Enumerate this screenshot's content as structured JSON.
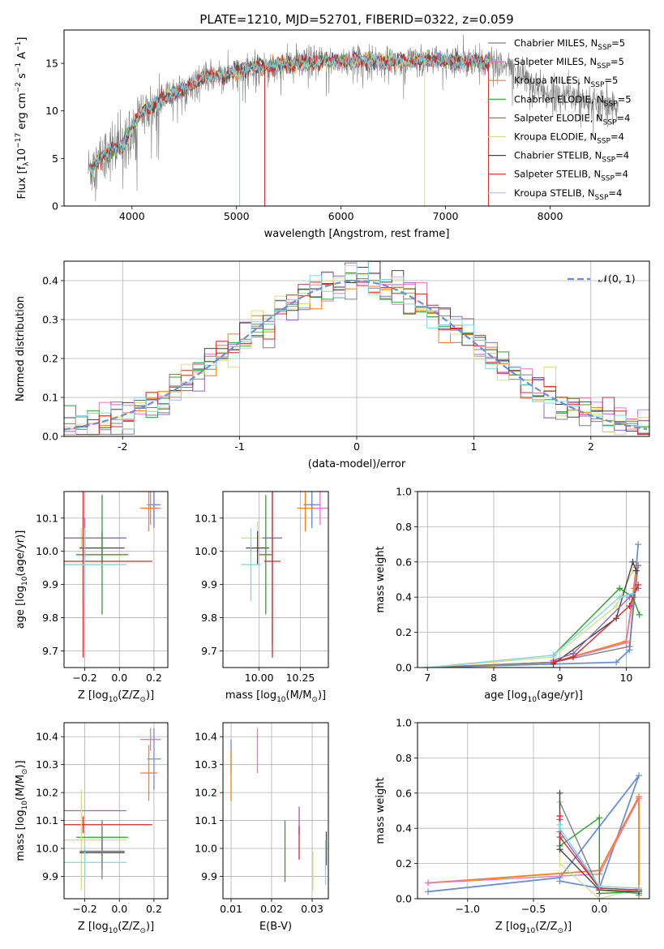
{
  "suptitle": "PLATE=1210, MJD=52701, FIBERID=0322, z=0.059",
  "colors": {
    "chabrier_miles": "#808080",
    "salpeter_miles": "#e377c2",
    "kroupa_miles": "#ff7f0e",
    "chabrier_elodie": "#2ca02c",
    "salpeter_elodie": "#9467bd",
    "kroupa_elodie": "#dbdb8d",
    "chabrier_stelib": "#444444",
    "salpeter_stelib": "#d62728",
    "kroupa_stelib": "#7fd6e0",
    "normal": "#6a8fd8"
  },
  "chart_data": [
    {
      "id": "spectrum",
      "type": "line",
      "xlabel_parts": [
        "wavelength [Angstrom, rest frame]"
      ],
      "ylabel_parts": [
        "Flux [f",
        "λ",
        "10",
        "−17",
        " erg cm",
        "−2",
        " s",
        "−1",
        " A",
        "−1",
        "]"
      ],
      "xlim": [
        3350,
        8950
      ],
      "ylim": [
        0,
        18.5
      ],
      "xticks": [
        4000,
        5000,
        6000,
        7000,
        8000
      ],
      "yticks": [
        0,
        5,
        10,
        15
      ],
      "legend_placement": "upper right",
      "legend": [
        {
          "label": "Chabrier MILES, N",
          "sub": "SSP",
          "tail": "=5",
          "color_key": "chabrier_miles"
        },
        {
          "label": "Salpeter MILES, N",
          "sub": "SSP",
          "tail": "=5",
          "color_key": "salpeter_miles"
        },
        {
          "label": "Kroupa MILES, N",
          "sub": "SSP",
          "tail": "=5",
          "color_key": "kroupa_miles"
        },
        {
          "label": "Chabrier ELODIE, N",
          "sub": "SSP",
          "tail": "=5",
          "color_key": "chabrier_elodie"
        },
        {
          "label": "Salpeter ELODIE, N",
          "sub": "SSP",
          "tail": "=4",
          "color_key": "salpeter_elodie"
        },
        {
          "label": "Kroupa ELODIE, N",
          "sub": "SSP",
          "tail": "=4",
          "color_key": "kroupa_elodie"
        },
        {
          "label": "Chabrier STELIB, N",
          "sub": "SSP",
          "tail": "=4",
          "color_key": "chabrier_stelib"
        },
        {
          "label": "Salpeter STELIB, N",
          "sub": "SSP",
          "tail": "=4",
          "color_key": "salpeter_stelib"
        },
        {
          "label": "Kroupa STELIB, N",
          "sub": "SSP",
          "tail": "=4",
          "color_key": "kroupa_stelib"
        }
      ],
      "continuum": {
        "x": [
          3600,
          3700,
          3800,
          3900,
          4000,
          4100,
          4200,
          4300,
          4400,
          4500,
          4600,
          4700,
          4800,
          4900,
          5000,
          5200,
          5400,
          5600,
          5800,
          6000,
          6200,
          6400,
          6600,
          6800,
          7000,
          7200,
          7400,
          7600,
          7800,
          8000,
          8200,
          8400,
          8600
        ],
        "y": [
          3.8,
          5.0,
          6.0,
          6.2,
          8.3,
          10.0,
          10.5,
          11.2,
          12.0,
          12.3,
          13.0,
          13.6,
          13.8,
          13.7,
          14.2,
          14.6,
          14.8,
          15.0,
          15.2,
          15.3,
          15.3,
          15.2,
          15.2,
          15.3,
          15.3,
          15.2,
          15.1,
          14.6,
          13.2,
          11.8,
          11.6,
          11.2,
          10.6
        ]
      },
      "data_range": [
        3580,
        8650
      ],
      "model_range": [
        3600,
        7420
      ],
      "spike_x": [
        5030,
        5270,
        6800,
        7410
      ]
    },
    {
      "id": "residuals",
      "type": "step-histogram",
      "xlabel_parts": [
        "(data-model)/error"
      ],
      "ylabel_parts": [
        "Normed distribution"
      ],
      "xlim": [
        -2.5,
        2.5
      ],
      "ylim": [
        0,
        0.45
      ],
      "xticks": [
        -2,
        -1,
        0,
        1,
        2
      ],
      "yticks": [
        0.0,
        0.1,
        0.2,
        0.3,
        0.4
      ],
      "legend_placement": "upper right",
      "legend": [
        {
          "label": "𝒩(0, 1)",
          "color_key": "normal"
        }
      ],
      "bin_width": 0.1,
      "histogram_range": [
        -2.5,
        2.5
      ]
    },
    {
      "id": "age-vs-Z",
      "type": "errorbar",
      "xlabel_parts": [
        "Z [log",
        "10",
        "(Z/Z",
        "⊙",
        ")]"
      ],
      "ylabel_parts": [
        "age  [log",
        "10",
        "(age/yr)]"
      ],
      "xlim": [
        -0.32,
        0.28
      ],
      "ylim": [
        9.65,
        10.18
      ],
      "xticks": [
        -0.2,
        0.0,
        0.2
      ],
      "xticklabels": [
        "−0.2",
        "0.0",
        "0.2"
      ],
      "yticks": [
        9.7,
        9.8,
        9.9,
        10.0,
        10.1
      ],
      "points": [
        {
          "color_key": "chabrier_miles",
          "x": 0.2,
          "xerr": 0.03,
          "y": 10.14,
          "yerr": 0.06
        },
        {
          "color_key": "normal",
          "x": 0.2,
          "xerr": 0.04,
          "y": 10.14,
          "yerr": 0.07
        },
        {
          "color_key": "salpeter_miles",
          "x": 0.18,
          "xerr": 0.06,
          "y": 10.13,
          "yerr": 0.05
        },
        {
          "color_key": "kroupa_miles",
          "x": 0.17,
          "xerr": 0.05,
          "y": 10.13,
          "yerr": 0.07
        },
        {
          "color_key": "kroupa_elodie",
          "x": -0.22,
          "xerr": 0.26,
          "y": 10.04,
          "yerr": 0.03
        },
        {
          "color_key": "salpeter_elodie",
          "x": -0.2,
          "xerr": 0.24,
          "y": 10.04,
          "yerr": 0.06
        },
        {
          "color_key": "chabrier_stelib",
          "x": -0.1,
          "xerr": 0.13,
          "y": 10.01,
          "yerr": 0.05
        },
        {
          "color_key": "chabrier_elodie",
          "x": -0.1,
          "xerr": 0.15,
          "y": 9.99,
          "yerr": 0.18
        },
        {
          "color_key": "salpeter_stelib",
          "x": -0.21,
          "xerr": 0.4,
          "y": 9.97,
          "yerr": 0.29
        },
        {
          "color_key": "kroupa_stelib",
          "x": -0.2,
          "xerr": 0.24,
          "y": 9.96,
          "yerr": 0.11
        }
      ]
    },
    {
      "id": "age-vs-mass",
      "type": "errorbar",
      "xlabel_parts": [
        "mass [log",
        "10",
        "(M/M",
        "⊙",
        ")]"
      ],
      "ylabel_parts": [],
      "xlim": [
        9.78,
        10.42
      ],
      "ylim": [
        9.65,
        10.18
      ],
      "xticks": [
        10.0,
        10.25
      ],
      "xticklabels": [
        "10.00",
        "10.25"
      ],
      "yticks": [
        9.7,
        9.8,
        9.9,
        10.0,
        10.1
      ],
      "points": [
        {
          "color_key": "chabrier_miles",
          "x": 10.32,
          "xerr": 0.05,
          "y": 10.14,
          "yerr": 0.06
        },
        {
          "color_key": "normal",
          "x": 10.32,
          "xerr": 0.05,
          "y": 10.14,
          "yerr": 0.07
        },
        {
          "color_key": "salpeter_miles",
          "x": 10.37,
          "xerr": 0.05,
          "y": 10.13,
          "yerr": 0.05
        },
        {
          "color_key": "kroupa_miles",
          "x": 10.28,
          "xerr": 0.05,
          "y": 10.13,
          "yerr": 0.07
        },
        {
          "color_key": "kroupa_elodie",
          "x": 9.99,
          "xerr": 0.1,
          "y": 10.04,
          "yerr": 0.05
        },
        {
          "color_key": "salpeter_elodie",
          "x": 10.08,
          "xerr": 0.06,
          "y": 10.04,
          "yerr": 0.32
        },
        {
          "color_key": "chabrier_stelib",
          "x": 9.99,
          "xerr": 0.07,
          "y": 10.01,
          "yerr": 0.05
        },
        {
          "color_key": "chabrier_elodie",
          "x": 10.04,
          "xerr": 0.04,
          "y": 9.99,
          "yerr": 0.18
        },
        {
          "color_key": "salpeter_stelib",
          "x": 10.08,
          "xerr": 0.05,
          "y": 9.97,
          "yerr": 0.29
        },
        {
          "color_key": "kroupa_stelib",
          "x": 9.95,
          "xerr": 0.06,
          "y": 9.96,
          "yerr": 0.11
        }
      ]
    },
    {
      "id": "weight-vs-age",
      "type": "line",
      "xlabel_parts": [
        "age  [log",
        "10",
        "(age/yr)]"
      ],
      "ylabel_parts": [
        "mass weight"
      ],
      "xlim": [
        6.85,
        10.35
      ],
      "ylim": [
        0,
        1
      ],
      "xticks": [
        7,
        8,
        9,
        10
      ],
      "yticks": [
        0.0,
        0.2,
        0.4,
        0.6,
        0.8,
        1.0
      ],
      "series": [
        {
          "color_key": "normal",
          "x": [
            7.0,
            9.85,
            10.05,
            10.18
          ],
          "y": [
            0.0,
            0.03,
            0.1,
            0.7
          ]
        },
        {
          "color_key": "kroupa_miles",
          "x": [
            7.0,
            8.9,
            10.0,
            10.12,
            10.18
          ],
          "y": [
            0.0,
            0.03,
            0.15,
            0.45,
            0.58
          ]
        },
        {
          "color_key": "salpeter_miles",
          "x": [
            7.0,
            8.9,
            10.0,
            10.15
          ],
          "y": [
            0.0,
            0.03,
            0.14,
            0.57
          ]
        },
        {
          "color_key": "chabrier_miles",
          "x": [
            7.0,
            8.9,
            10.05,
            10.18
          ],
          "y": [
            0.0,
            0.03,
            0.12,
            0.58
          ]
        },
        {
          "color_key": "kroupa_elodie",
          "x": [
            7.0,
            8.9,
            9.85,
            10.1
          ],
          "y": [
            0.0,
            0.06,
            0.35,
            0.55
          ]
        },
        {
          "color_key": "chabrier_elodie",
          "x": [
            8.9,
            9.9,
            10.1,
            10.2
          ],
          "y": [
            0.07,
            0.45,
            0.4,
            0.3
          ]
        },
        {
          "color_key": "chabrier_stelib",
          "x": [
            8.9,
            9.85,
            10.1,
            10.15
          ],
          "y": [
            0.02,
            0.28,
            0.6,
            0.55
          ]
        },
        {
          "color_key": "salpeter_elodie",
          "x": [
            8.9,
            9.2,
            10.05,
            10.18
          ],
          "y": [
            0.04,
            0.08,
            0.4,
            0.45
          ]
        },
        {
          "color_key": "salpeter_stelib",
          "x": [
            8.9,
            9.2,
            10.05,
            10.18
          ],
          "y": [
            0.03,
            0.06,
            0.35,
            0.47
          ]
        },
        {
          "color_key": "kroupa_stelib",
          "x": [
            7.0,
            8.9,
            9.9,
            10.1
          ],
          "y": [
            0.0,
            0.07,
            0.4,
            0.42
          ]
        }
      ]
    },
    {
      "id": "mass-vs-Z",
      "type": "errorbar",
      "xlabel_parts": [
        "Z [log",
        "10",
        "(Z/Z",
        "⊙",
        ")]"
      ],
      "ylabel_parts": [
        "mass [log",
        "10",
        "(M/M",
        "⊙",
        ")]"
      ],
      "xlim": [
        -0.32,
        0.28
      ],
      "ylim": [
        9.82,
        10.45
      ],
      "xticks": [
        -0.2,
        0.0,
        0.2
      ],
      "xticklabels": [
        "−0.2",
        "0.0",
        "0.2"
      ],
      "yticks": [
        9.9,
        10.0,
        10.1,
        10.2,
        10.3,
        10.4
      ],
      "points": [
        {
          "color_key": "salpeter_miles",
          "x": 0.18,
          "xerr": 0.06,
          "y": 10.39,
          "yerr": 0.04
        },
        {
          "color_key": "normal",
          "x": 0.2,
          "xerr": 0.04,
          "y": 10.32,
          "yerr": 0.11
        },
        {
          "color_key": "kroupa_miles",
          "x": 0.17,
          "xerr": 0.05,
          "y": 10.27,
          "yerr": 0.1
        },
        {
          "color_key": "salpeter_elodie",
          "x": -0.2,
          "xerr": 0.24,
          "y": 10.135,
          "yerr": 0.0
        },
        {
          "color_key": "salpeter_stelib",
          "x": -0.21,
          "xerr": 0.4,
          "y": 10.085,
          "yerr": 0.03
        },
        {
          "color_key": "chabrier_elodie",
          "x": -0.1,
          "xerr": 0.15,
          "y": 10.04,
          "yerr": 0.06
        },
        {
          "color_key": "kroupa_elodie",
          "x": -0.22,
          "xerr": 0.26,
          "y": 10.03,
          "yerr": 0.18
        },
        {
          "color_key": "chabrier_stelib",
          "x": -0.1,
          "xerr": 0.13,
          "y": 9.985,
          "yerr": 0.06
        },
        {
          "color_key": "kroupa_stelib",
          "x": -0.2,
          "xerr": 0.24,
          "y": 9.95,
          "yerr": 0.06
        },
        {
          "color_key": "chabrier_miles",
          "x": -0.1,
          "xerr": 0.13,
          "y": 9.99,
          "yerr": 0.1
        }
      ]
    },
    {
      "id": "mass-vs-EBV",
      "type": "errorbar",
      "xlabel_parts": [
        "E(B-V)"
      ],
      "ylabel_parts": [],
      "xlim": [
        0.008,
        0.034
      ],
      "ylim": [
        9.82,
        10.45
      ],
      "xticks": [
        0.01,
        0.02,
        0.03
      ],
      "xticklabels": [
        "0.01",
        "0.02",
        "0.03"
      ],
      "yticks": [
        9.9,
        10.0,
        10.1,
        10.2,
        10.3,
        10.4
      ],
      "points": [
        {
          "color_key": "normal",
          "x": 0.01,
          "xerr": 0.0,
          "y": 10.33,
          "yerr": 0.06
        },
        {
          "color_key": "kroupa_miles",
          "x": 0.01,
          "xerr": 0.0,
          "y": 10.26,
          "yerr": 0.09
        },
        {
          "color_key": "salpeter_miles",
          "x": 0.0165,
          "xerr": 0.0,
          "y": 10.35,
          "yerr": 0.08
        },
        {
          "color_key": "chabrier_elodie",
          "x": 0.0233,
          "xerr": 0.0,
          "y": 9.99,
          "yerr": 0.11
        },
        {
          "color_key": "salpeter_elodie",
          "x": 0.0268,
          "xerr": 0.0,
          "y": 10.1,
          "yerr": 0.05
        },
        {
          "color_key": "salpeter_stelib",
          "x": 0.0268,
          "xerr": 0.0,
          "y": 10.02,
          "yerr": 0.06
        },
        {
          "color_key": "kroupa_elodie",
          "x": 0.0302,
          "xerr": 0.0,
          "y": 9.92,
          "yerr": 0.07
        },
        {
          "color_key": "chabrier_stelib",
          "x": 0.0335,
          "xerr": 0.0,
          "y": 10.0,
          "yerr": 0.06
        },
        {
          "color_key": "kroupa_stelib",
          "x": 0.0333,
          "xerr": 0.0,
          "y": 9.95,
          "yerr": 0.08
        }
      ]
    },
    {
      "id": "weight-vs-Z",
      "type": "line",
      "xlabel_parts": [
        "Z [log",
        "10",
        "(Z/Z",
        "⊙",
        ")]"
      ],
      "ylabel_parts": [
        "mass weight"
      ],
      "xlim": [
        -1.38,
        0.38
      ],
      "ylim": [
        0,
        1
      ],
      "xticks": [
        -1.0,
        -0.5,
        0.0
      ],
      "xticklabels": [
        "−1.0",
        "−0.5",
        "0.0"
      ],
      "yticks": [
        0.0,
        0.2,
        0.4,
        0.6,
        0.8,
        1.0
      ],
      "series": [
        {
          "color_key": "normal",
          "x": [
            -1.3,
            -0.3,
            0.3,
            0.0,
            -0.3
          ],
          "y": [
            0.04,
            0.12,
            0.7,
            0.06,
            0.1
          ]
        },
        {
          "color_key": "kroupa_miles",
          "x": [
            -1.3,
            0.0,
            0.3,
            0.3
          ],
          "y": [
            0.09,
            0.16,
            0.58,
            0.02
          ]
        },
        {
          "color_key": "salpeter_miles",
          "x": [
            -1.3,
            0.0,
            0.3
          ],
          "y": [
            0.09,
            0.14,
            0.57
          ]
        },
        {
          "color_key": "chabrier_miles",
          "x": [
            -0.3,
            0.0,
            0.3
          ],
          "y": [
            0.55,
            0.05,
            0.03
          ]
        },
        {
          "color_key": "kroupa_elodie",
          "x": [
            -0.3,
            -0.3,
            0.0,
            0.3
          ],
          "y": [
            0.55,
            0.2,
            0.0,
            0.06
          ]
        },
        {
          "color_key": "chabrier_elodie",
          "x": [
            -0.3,
            0.0,
            0.0,
            0.3
          ],
          "y": [
            0.3,
            0.46,
            0.03,
            0.04
          ]
        },
        {
          "color_key": "chabrier_stelib",
          "x": [
            -0.3,
            -0.3,
            0.0,
            0.3
          ],
          "y": [
            0.6,
            0.28,
            0.05,
            0.04
          ]
        },
        {
          "color_key": "salpeter_elodie",
          "x": [
            -0.3,
            -0.3,
            0.0,
            0.3
          ],
          "y": [
            0.45,
            0.38,
            0.06,
            0.05
          ]
        },
        {
          "color_key": "salpeter_stelib",
          "x": [
            -0.3,
            -0.3,
            0.0,
            0.3
          ],
          "y": [
            0.47,
            0.35,
            0.06,
            0.05
          ]
        },
        {
          "color_key": "kroupa_stelib",
          "x": [
            -0.3,
            -0.3,
            0.0,
            0.3
          ],
          "y": [
            0.42,
            0.4,
            0.07,
            0.06
          ]
        }
      ]
    }
  ]
}
